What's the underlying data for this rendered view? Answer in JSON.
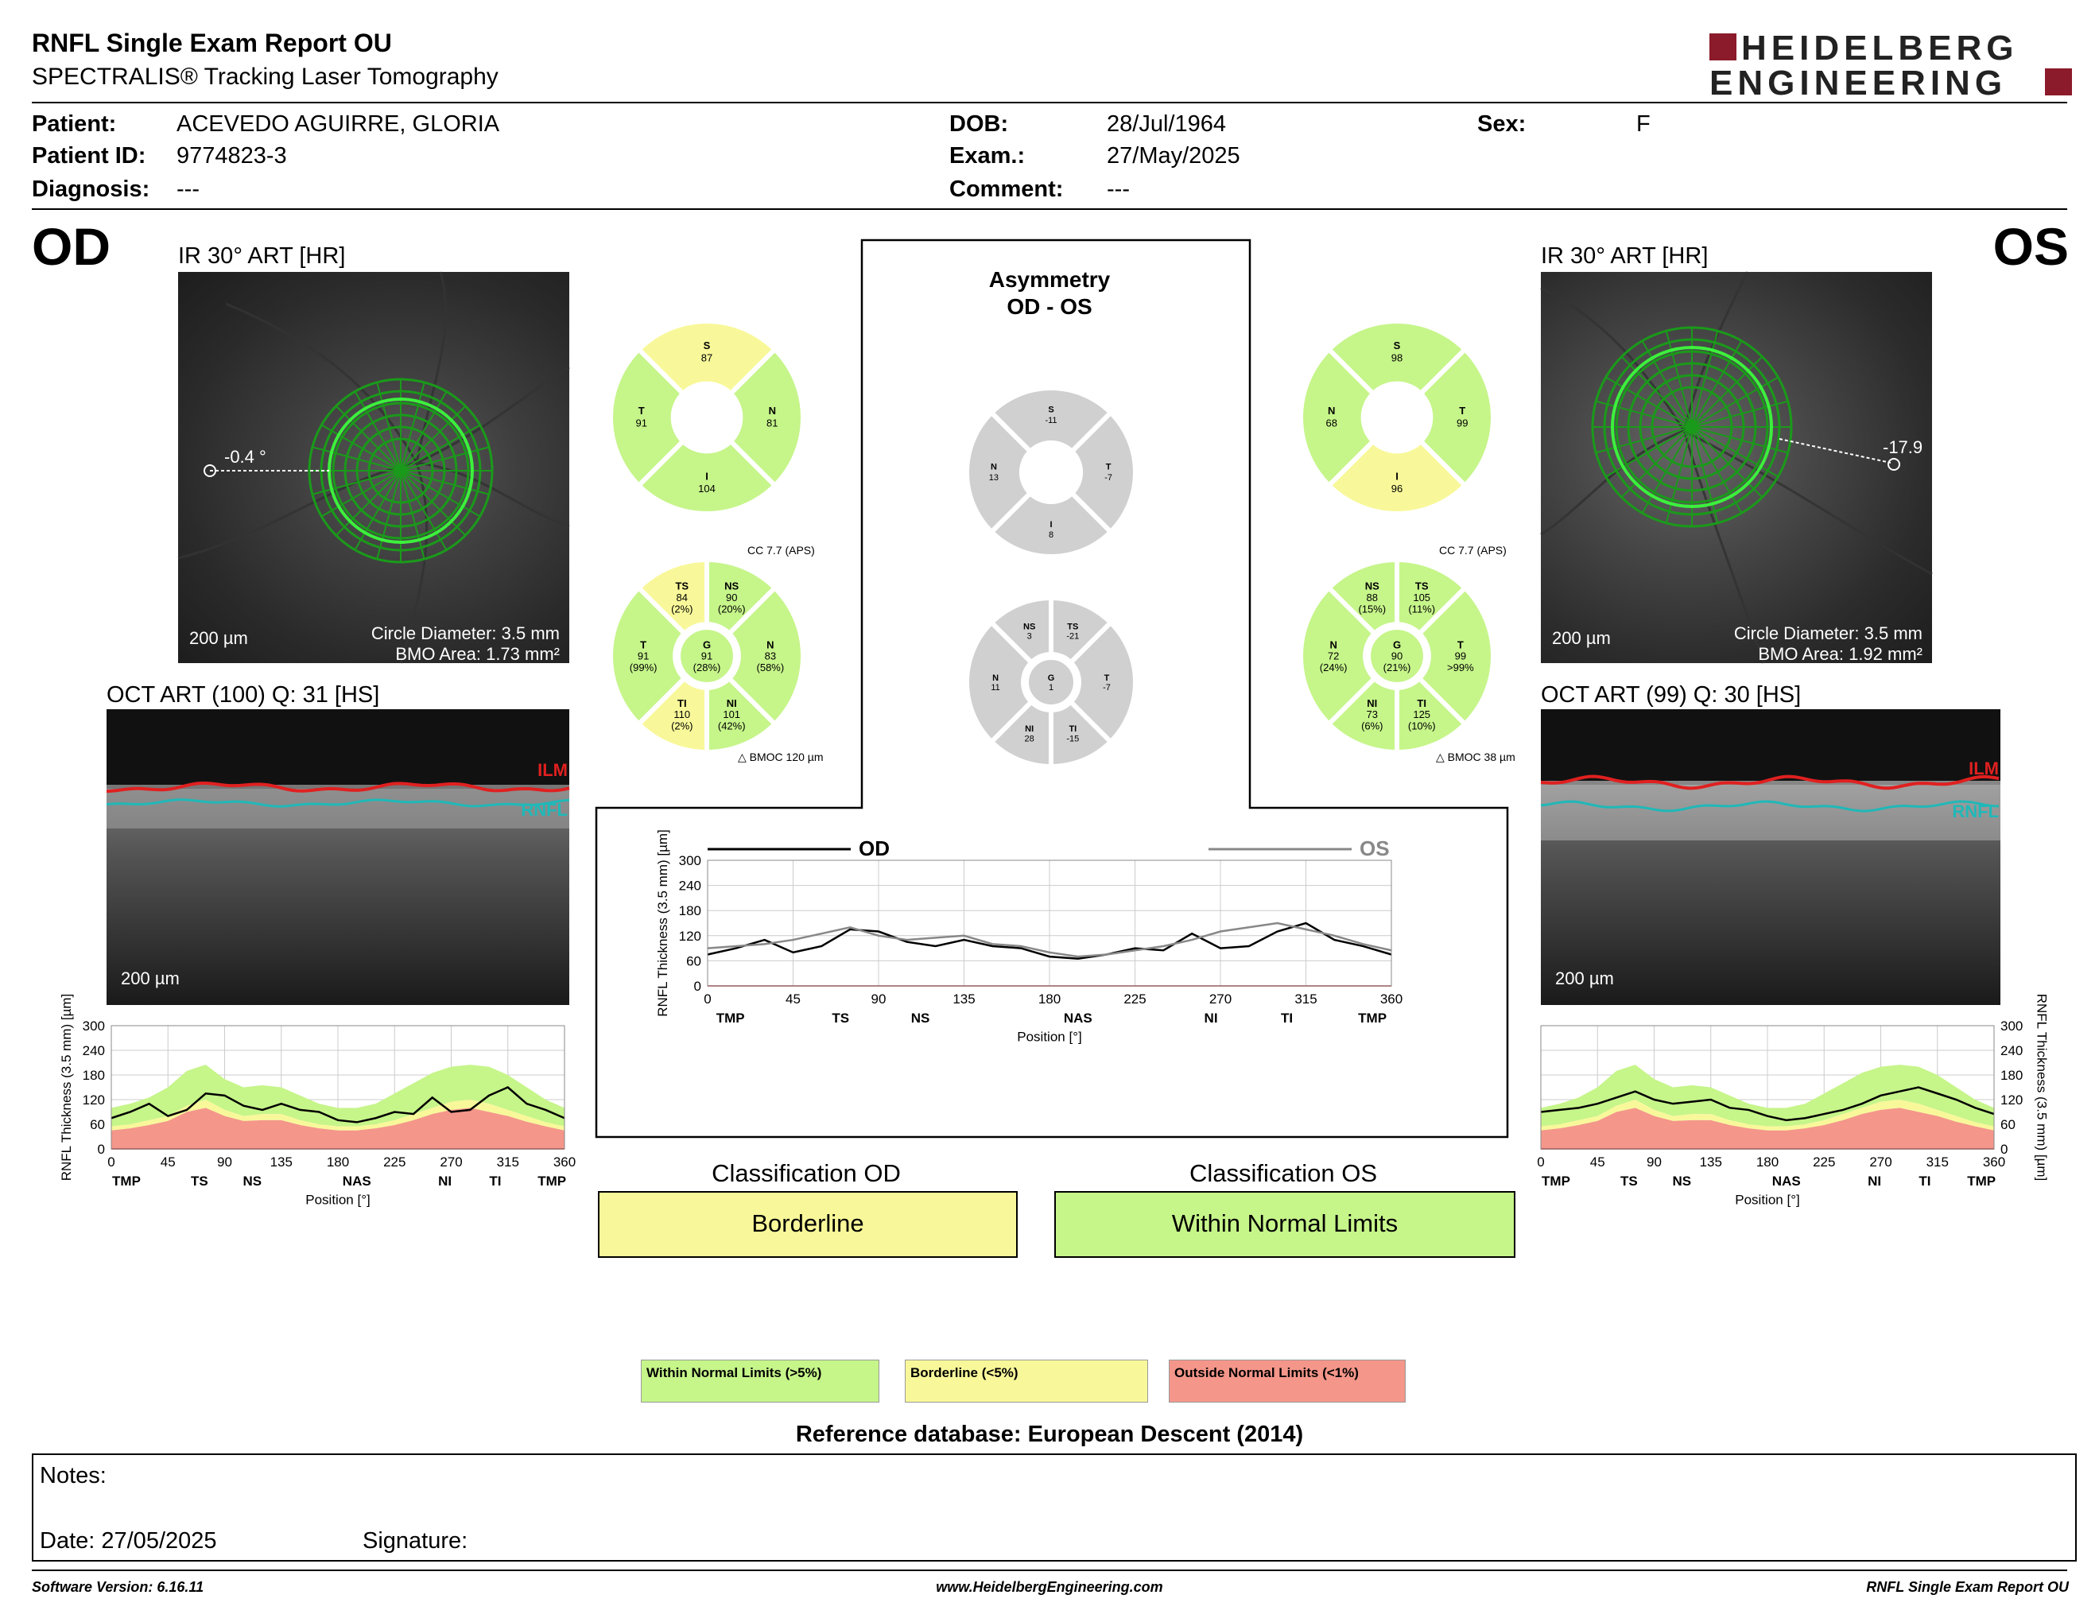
{
  "header": {
    "title": "RNFL Single Exam Report OU",
    "subtitle": "SPECTRALIS® Tracking Laser Tomography",
    "logo_line1": "HEIDELBERG",
    "logo_line2": "ENGINEERING"
  },
  "patient": {
    "name_label": "Patient:",
    "name": "ACEVEDO AGUIRRE, GLORIA",
    "id_label": "Patient ID:",
    "id": "9774823-3",
    "diagnosis_label": "Diagnosis:",
    "diagnosis": "---",
    "dob_label": "DOB:",
    "dob": "28/Jul/1964",
    "exam_label": "Exam.:",
    "exam": "27/May/2025",
    "comment_label": "Comment:",
    "comment": "---",
    "sex_label": "Sex:",
    "sex": "F"
  },
  "od": {
    "eye": "OD",
    "ir_title": "IR 30° ART [HR]",
    "angle": "-0.4 °",
    "scale": "200 µm",
    "circle_diameter": "Circle Diameter: 3.5 mm",
    "bmo_area": "BMO Area: 1.73 mm²",
    "oct_title": "OCT ART (100) Q: 31 [HS]",
    "ilm": "ILM",
    "rnfl": "RNFL",
    "sector4": {
      "S": {
        "label": "S",
        "value": "87"
      },
      "T": {
        "label": "T",
        "value": "91"
      },
      "N": {
        "label": "N",
        "value": "81"
      },
      "I": {
        "label": "I",
        "value": "104"
      }
    },
    "cc": "CC 7.7 (APS)",
    "bmoc": "BMOC 120 µm",
    "sector6": {
      "TS": {
        "label": "TS",
        "value": "84",
        "pct": "(2%)"
      },
      "NS": {
        "label": "NS",
        "value": "90",
        "pct": "(20%)"
      },
      "T": {
        "label": "T",
        "value": "91",
        "pct": "(99%)"
      },
      "G": {
        "label": "G",
        "value": "91",
        "pct": "(28%)"
      },
      "N": {
        "label": "N",
        "value": "83",
        "pct": "(58%)"
      },
      "TI": {
        "label": "TI",
        "value": "110",
        "pct": "(2%)"
      },
      "NI": {
        "label": "NI",
        "value": "101",
        "pct": "(42%)"
      }
    }
  },
  "os": {
    "eye": "OS",
    "ir_title": "IR 30° ART [HR]",
    "angle": "-17.9",
    "scale": "200 µm",
    "circle_diameter": "Circle Diameter: 3.5 mm",
    "bmo_area": "BMO Area: 1.92 mm²",
    "oct_title": "OCT ART (99) Q: 30 [HS]",
    "ilm": "ILM",
    "rnfl": "RNFL",
    "sector4": {
      "S": {
        "label": "S",
        "value": "98"
      },
      "N": {
        "label": "N",
        "value": "68"
      },
      "T": {
        "label": "T",
        "value": "99"
      },
      "I": {
        "label": "I",
        "value": "96"
      }
    },
    "cc": "CC 7.7 (APS)",
    "bmoc": "BMOC 38 µm",
    "sector6": {
      "NS": {
        "label": "NS",
        "value": "88",
        "pct": "(15%)"
      },
      "TS": {
        "label": "TS",
        "value": "105",
        "pct": "(11%)"
      },
      "N": {
        "label": "N",
        "value": "72",
        "pct": "(24%)"
      },
      "G": {
        "label": "G",
        "value": "90",
        "pct": "(21%)"
      },
      "T": {
        "label": "T",
        "value": "99",
        "pct": ">99%"
      },
      "NI": {
        "label": "NI",
        "value": "73",
        "pct": "(6%)"
      },
      "TI": {
        "label": "TI",
        "value": "125",
        "pct": "(10%)"
      }
    }
  },
  "asymmetry": {
    "title1": "Asymmetry",
    "title2": "OD - OS",
    "sector4": {
      "S": {
        "label": "S",
        "value": "-11"
      },
      "N": {
        "label": "N",
        "value": "13"
      },
      "T": {
        "label": "T",
        "value": "-7"
      },
      "I": {
        "label": "I",
        "value": "8"
      }
    },
    "sector6": {
      "NS": {
        "label": "NS",
        "value": "3"
      },
      "TS": {
        "label": "TS",
        "value": "-21"
      },
      "N": {
        "label": "N",
        "value": "11"
      },
      "G": {
        "label": "G",
        "value": "1"
      },
      "T": {
        "label": "T",
        "value": "-7"
      },
      "NI": {
        "label": "NI",
        "value": "28"
      },
      "TI": {
        "label": "TI",
        "value": "-15"
      }
    }
  },
  "classification": {
    "od_title": "Classification OD",
    "od_value": "Borderline",
    "os_title": "Classification OS",
    "os_value": "Within Normal Limits"
  },
  "legend": {
    "normal": "Within Normal Limits (>5%)",
    "borderline": "Borderline (<5%)",
    "outside": "Outside Normal Limits (<1%)"
  },
  "reference": "Reference database: European Descent (2014)",
  "notes": {
    "label": "Notes:",
    "date": "Date: 27/05/2025",
    "signature": "Signature:"
  },
  "footer": {
    "software": "Software Version: 6.16.11",
    "url": "www.HeidelbergEngineering.com",
    "report": "RNFL Single Exam Report OU"
  },
  "colors": {
    "normal": "#c6f58a",
    "borderline": "#f8f89a",
    "outside": "#f4968a",
    "asym": "#d0d0d0",
    "od_line": "#000000",
    "os_line": "#888888"
  },
  "chart_data": [
    {
      "type": "line",
      "id": "od_profile",
      "xlabel": "Position [°]",
      "ylabel": "RNFL Thickness (3.5 mm) [µm]",
      "xlim": [
        0,
        360
      ],
      "ylim": [
        0,
        300
      ],
      "xticks": [
        0,
        45,
        90,
        135,
        180,
        225,
        270,
        315,
        360
      ],
      "yticks": [
        0,
        60,
        120,
        180,
        240,
        300
      ],
      "sectors": [
        "TMP",
        "TS",
        "NS",
        "NAS",
        "NI",
        "TI",
        "TMP"
      ],
      "x": [
        0,
        15,
        30,
        45,
        60,
        75,
        90,
        105,
        120,
        135,
        150,
        165,
        180,
        195,
        210,
        225,
        240,
        255,
        270,
        285,
        300,
        315,
        330,
        345,
        360
      ],
      "series": [
        {
          "name": "OD",
          "values": [
            75,
            90,
            110,
            80,
            95,
            135,
            130,
            105,
            95,
            110,
            95,
            90,
            70,
            65,
            75,
            90,
            85,
            125,
            90,
            95,
            130,
            150,
            110,
            95,
            75
          ]
        }
      ],
      "normal_band_upper": [
        100,
        110,
        125,
        150,
        190,
        205,
        170,
        150,
        155,
        150,
        130,
        110,
        100,
        100,
        110,
        135,
        160,
        185,
        200,
        205,
        200,
        180,
        150,
        120,
        100
      ],
      "normal_band_lower": [
        55,
        60,
        70,
        80,
        105,
        120,
        95,
        80,
        85,
        85,
        70,
        60,
        55,
        55,
        60,
        70,
        85,
        100,
        115,
        120,
        110,
        95,
        80,
        65,
        55
      ],
      "borderline_lower": [
        45,
        50,
        58,
        68,
        90,
        100,
        80,
        68,
        70,
        70,
        58,
        50,
        45,
        45,
        50,
        58,
        70,
        85,
        95,
        100,
        90,
        80,
        66,
        55,
        45
      ]
    },
    {
      "type": "line",
      "id": "os_profile",
      "xlabel": "Position [°]",
      "ylabel": "RNFL Thickness (3.5 mm) [µm]",
      "xlim": [
        0,
        360
      ],
      "ylim": [
        0,
        300
      ],
      "xticks": [
        0,
        45,
        90,
        135,
        180,
        225,
        270,
        315,
        360
      ],
      "yticks": [
        0,
        60,
        120,
        180,
        240,
        300
      ],
      "sectors": [
        "TMP",
        "TS",
        "NS",
        "NAS",
        "NI",
        "TI",
        "TMP"
      ],
      "x": [
        0,
        15,
        30,
        45,
        60,
        75,
        90,
        105,
        120,
        135,
        150,
        165,
        180,
        195,
        210,
        225,
        240,
        255,
        270,
        285,
        300,
        315,
        330,
        345,
        360
      ],
      "series": [
        {
          "name": "OS",
          "values": [
            90,
            95,
            100,
            110,
            125,
            140,
            120,
            110,
            115,
            120,
            100,
            95,
            80,
            70,
            75,
            85,
            95,
            110,
            130,
            140,
            150,
            135,
            120,
            100,
            85
          ]
        }
      ],
      "normal_band_upper": [
        100,
        110,
        125,
        150,
        190,
        205,
        170,
        150,
        155,
        150,
        130,
        110,
        100,
        100,
        110,
        135,
        160,
        185,
        200,
        205,
        200,
        180,
        150,
        120,
        100
      ],
      "normal_band_lower": [
        55,
        60,
        70,
        80,
        105,
        120,
        95,
        80,
        85,
        85,
        70,
        60,
        55,
        55,
        60,
        70,
        85,
        100,
        115,
        120,
        110,
        95,
        80,
        65,
        55
      ],
      "borderline_lower": [
        45,
        50,
        58,
        68,
        90,
        100,
        80,
        68,
        70,
        70,
        58,
        50,
        45,
        45,
        50,
        58,
        70,
        85,
        95,
        100,
        90,
        80,
        66,
        55,
        45
      ]
    },
    {
      "type": "line",
      "id": "ou_comparison",
      "xlabel": "Position [°]",
      "ylabel": "RNFL Thickness (3.5 mm) [µm]",
      "xlim": [
        0,
        360
      ],
      "ylim": [
        0,
        300
      ],
      "xticks": [
        0,
        45,
        90,
        135,
        180,
        225,
        270,
        315,
        360
      ],
      "yticks": [
        0,
        60,
        120,
        180,
        240,
        300
      ],
      "sectors": [
        "TMP",
        "TS",
        "NS",
        "NAS",
        "NI",
        "TI",
        "TMP"
      ],
      "x": [
        0,
        15,
        30,
        45,
        60,
        75,
        90,
        105,
        120,
        135,
        150,
        165,
        180,
        195,
        210,
        225,
        240,
        255,
        270,
        285,
        300,
        315,
        330,
        345,
        360
      ],
      "series": [
        {
          "name": "OD",
          "values": [
            75,
            90,
            110,
            80,
            95,
            135,
            130,
            105,
            95,
            110,
            95,
            90,
            70,
            65,
            75,
            90,
            85,
            125,
            90,
            95,
            130,
            150,
            110,
            95,
            75
          ]
        },
        {
          "name": "OS",
          "values": [
            90,
            95,
            100,
            110,
            125,
            140,
            120,
            110,
            115,
            120,
            100,
            95,
            80,
            70,
            75,
            85,
            95,
            110,
            130,
            140,
            150,
            135,
            120,
            100,
            85
          ]
        }
      ]
    }
  ]
}
